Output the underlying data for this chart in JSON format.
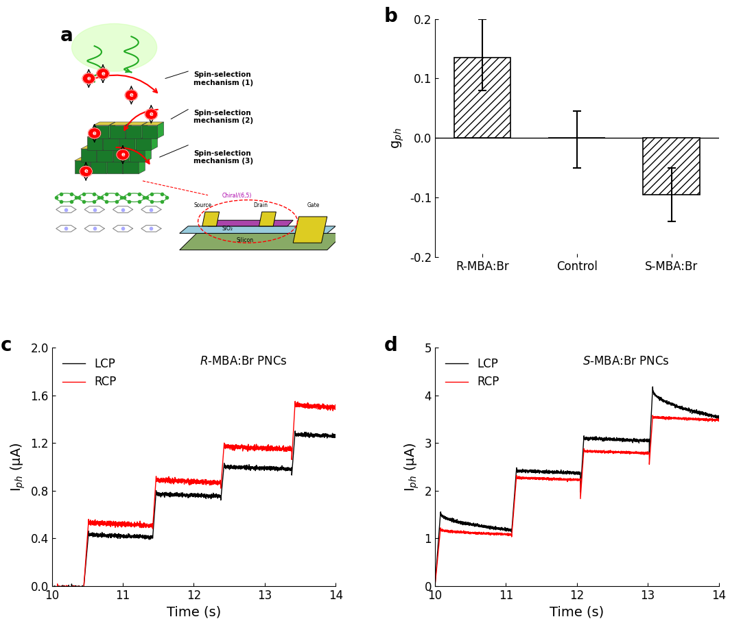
{
  "panel_b": {
    "categories": [
      "R-MBA:Br",
      "Control",
      "S-MBA:Br"
    ],
    "values": [
      0.135,
      0.0,
      -0.095
    ],
    "errors_upper": [
      0.065,
      0.045,
      0.045
    ],
    "errors_lower": [
      0.055,
      0.05,
      0.045
    ],
    "ylabel": "g_ph",
    "ylim": [
      -0.2,
      0.2
    ],
    "yticks": [
      -0.2,
      -0.1,
      0.0,
      0.1,
      0.2
    ],
    "hatch": "///",
    "bar_color": "white",
    "bar_edgecolor": "black",
    "bar_width": 0.6
  },
  "panel_c": {
    "title": "$R$-MBA:Br PNCs",
    "xlabel": "Time (s)",
    "ylabel": "I$_{ph}$ (μA)",
    "xlim": [
      10,
      14
    ],
    "ylim": [
      0,
      2.0
    ],
    "yticks": [
      0.0,
      0.4,
      0.8,
      1.2,
      1.6,
      2.0
    ],
    "xticks": [
      10,
      11,
      12,
      13,
      14
    ],
    "lcp_color": "black",
    "rcp_color": "red",
    "legend_labels": [
      "LCP",
      "RCP"
    ]
  },
  "panel_d": {
    "title": "$S$-MBA:Br PNCs",
    "xlabel": "Time (s)",
    "ylabel": "I$_{ph}$ (μA)",
    "xlim": [
      10,
      14
    ],
    "ylim": [
      0,
      5
    ],
    "yticks": [
      0,
      1,
      2,
      3,
      4,
      5
    ],
    "xticks": [
      10,
      11,
      12,
      13,
      14
    ],
    "lcp_color": "black",
    "rcp_color": "red",
    "legend_labels": [
      "LCP",
      "RCP"
    ]
  },
  "label_fontsize": 14,
  "tick_fontsize": 12,
  "panel_label_fontsize": 20,
  "axis_linewidth": 1.2
}
